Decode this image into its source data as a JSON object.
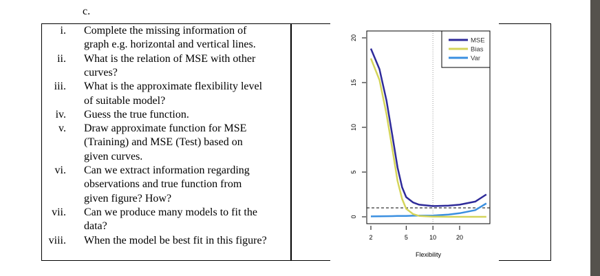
{
  "section_label": "c.",
  "questions": [
    {
      "num": "i.",
      "lines": [
        "Complete the missing information of",
        "graph e.g. horizontal and vertical lines."
      ]
    },
    {
      "num": "ii.",
      "lines": [
        "What is the relation of MSE with other",
        "curves?"
      ]
    },
    {
      "num": "iii.",
      "lines": [
        "What is the approximate flexibility level",
        "of suitable model?"
      ]
    },
    {
      "num": "iv.",
      "lines": [
        "Guess the true function."
      ]
    },
    {
      "num": "v.",
      "lines": [
        "Draw approximate function for MSE",
        "(Training) and MSE (Test) based on",
        "given curves."
      ]
    },
    {
      "num": "vi.",
      "lines": [
        "Can we extract information regarding",
        "observations and true function from",
        "given figure? How?"
      ]
    },
    {
      "num": "vii.",
      "lines": [
        "Can we produce many models to fit the",
        "data?"
      ]
    },
    {
      "num": "viii.",
      "lines": [
        "When the model be best fit in this figure?"
      ]
    }
  ],
  "chart_data": {
    "type": "line",
    "xlabel": "Flexibility",
    "ylabel": "",
    "x_scale": "log",
    "xlim": [
      2,
      40
    ],
    "ylim": [
      0,
      20
    ],
    "x_ticks": [
      "2",
      "5",
      "10",
      "20"
    ],
    "y_ticks": [
      "0",
      "5",
      "10",
      "15",
      "20"
    ],
    "legend_position": "top-right",
    "x": [
      2,
      2.5,
      3,
      3.5,
      4,
      4.5,
      5,
      6,
      7,
      10,
      15,
      20,
      30,
      40
    ],
    "series": [
      {
        "name": "MSE",
        "color": "#2e2a99",
        "values": [
          18.8,
          16.5,
          13,
          9,
          5.5,
          3.3,
          2.2,
          1.6,
          1.35,
          1.2,
          1.25,
          1.35,
          1.7,
          2.5
        ]
      },
      {
        "name": "Bias",
        "color": "#d4d45a",
        "values": [
          17.7,
          15.3,
          11.5,
          7.5,
          4,
          2,
          0.9,
          0.3,
          0.1,
          0.02,
          0,
          0,
          0,
          0
        ]
      },
      {
        "name": "Var",
        "color": "#3a8fe0",
        "values": [
          0.05,
          0.06,
          0.07,
          0.08,
          0.09,
          0.1,
          0.1,
          0.12,
          0.13,
          0.15,
          0.25,
          0.4,
          0.75,
          1.5
        ]
      }
    ],
    "reference_lines": {
      "horizontal_dashed_y": 1,
      "vertical_dotted_x": 10
    }
  }
}
